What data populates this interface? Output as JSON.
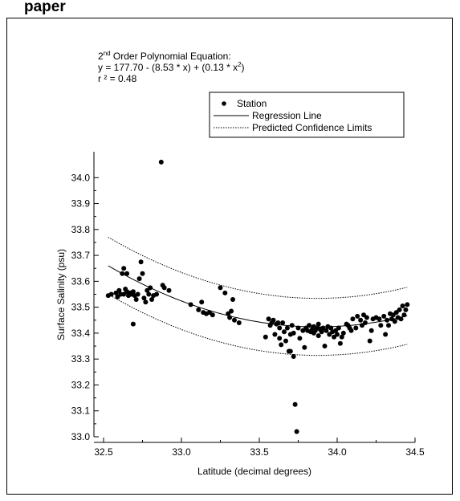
{
  "page": {
    "title": "paper"
  },
  "equation": {
    "line1_prefix": "2",
    "line1_sup": "nd",
    "line1_suffix": " Order Polynomial Equation:",
    "line2_main": "y = 177.70 - (8.53 * x) + (0.13 * x",
    "line2_sup": "2",
    "line2_end": ")",
    "line3": "r ² = 0.48"
  },
  "chart_data": {
    "type": "scatter",
    "xlabel": "Latitude (decimal degrees)",
    "ylabel": "Surface Salinity (psu)",
    "xlim": [
      32.5,
      34.5
    ],
    "ylim": [
      33.0,
      34.1
    ],
    "xticks": [
      "32.5",
      "33.0",
      "33.5",
      "34.0",
      "34.5"
    ],
    "yticks": [
      "33.0",
      "33.1",
      "33.2",
      "33.3",
      "33.4",
      "33.5",
      "33.6",
      "33.7",
      "33.8",
      "33.9",
      "34.0"
    ],
    "legend": {
      "position": "top-right",
      "entries": [
        "Station",
        "Regression Line",
        "Predicted Confidence Limits"
      ]
    },
    "colors": {
      "points": "#000000",
      "lines": "#000000"
    },
    "regression": {
      "intercept": 177.7,
      "b1": -8.53,
      "b2": 0.13,
      "r2": 0.48
    },
    "stations": [
      [
        32.53,
        33.545
      ],
      [
        32.55,
        33.55
      ],
      [
        32.58,
        33.555
      ],
      [
        32.59,
        33.54
      ],
      [
        32.6,
        33.565
      ],
      [
        32.61,
        33.55
      ],
      [
        32.62,
        33.63
      ],
      [
        32.63,
        33.65
      ],
      [
        32.63,
        33.55
      ],
      [
        32.64,
        33.57
      ],
      [
        32.65,
        33.56
      ],
      [
        32.65,
        33.63
      ],
      [
        32.66,
        33.545
      ],
      [
        32.67,
        33.555
      ],
      [
        32.68,
        33.55
      ],
      [
        32.69,
        33.435
      ],
      [
        32.69,
        33.56
      ],
      [
        32.7,
        33.545
      ],
      [
        32.71,
        33.53
      ],
      [
        32.72,
        33.55
      ],
      [
        32.73,
        33.61
      ],
      [
        32.74,
        33.675
      ],
      [
        32.75,
        33.63
      ],
      [
        32.76,
        33.535
      ],
      [
        32.77,
        33.52
      ],
      [
        32.78,
        33.565
      ],
      [
        32.79,
        33.55
      ],
      [
        32.8,
        33.575
      ],
      [
        32.81,
        33.53
      ],
      [
        32.82,
        33.545
      ],
      [
        32.84,
        33.55
      ],
      [
        32.87,
        34.06
      ],
      [
        32.88,
        33.585
      ],
      [
        32.89,
        33.575
      ],
      [
        32.92,
        33.565
      ],
      [
        33.06,
        33.51
      ],
      [
        33.11,
        33.49
      ],
      [
        33.13,
        33.52
      ],
      [
        33.14,
        33.48
      ],
      [
        33.16,
        33.475
      ],
      [
        33.18,
        33.48
      ],
      [
        33.2,
        33.47
      ],
      [
        33.25,
        33.575
      ],
      [
        33.28,
        33.555
      ],
      [
        33.3,
        33.475
      ],
      [
        33.31,
        33.46
      ],
      [
        33.32,
        33.485
      ],
      [
        33.33,
        33.53
      ],
      [
        33.34,
        33.45
      ],
      [
        33.37,
        33.44
      ],
      [
        33.54,
        33.385
      ],
      [
        33.56,
        33.455
      ],
      [
        33.57,
        33.43
      ],
      [
        33.58,
        33.44
      ],
      [
        33.59,
        33.45
      ],
      [
        33.6,
        33.395
      ],
      [
        33.61,
        33.435
      ],
      [
        33.62,
        33.44
      ],
      [
        33.63,
        33.38
      ],
      [
        33.63,
        33.42
      ],
      [
        33.64,
        33.355
      ],
      [
        33.65,
        33.44
      ],
      [
        33.66,
        33.405
      ],
      [
        33.67,
        33.37
      ],
      [
        33.68,
        33.42
      ],
      [
        33.69,
        33.33
      ],
      [
        33.7,
        33.395
      ],
      [
        33.7,
        33.33
      ],
      [
        33.71,
        33.43
      ],
      [
        33.72,
        33.4
      ],
      [
        33.72,
        33.31
      ],
      [
        33.73,
        33.125
      ],
      [
        33.74,
        33.02
      ],
      [
        33.75,
        33.42
      ],
      [
        33.76,
        33.38
      ],
      [
        33.78,
        33.41
      ],
      [
        33.79,
        33.345
      ],
      [
        33.8,
        33.42
      ],
      [
        33.81,
        33.41
      ],
      [
        33.82,
        33.43
      ],
      [
        33.83,
        33.405
      ],
      [
        33.84,
        33.415
      ],
      [
        33.85,
        33.425
      ],
      [
        33.85,
        33.4
      ],
      [
        33.86,
        33.41
      ],
      [
        33.87,
        33.42
      ],
      [
        33.88,
        33.435
      ],
      [
        33.88,
        33.39
      ],
      [
        33.89,
        33.415
      ],
      [
        33.9,
        33.405
      ],
      [
        33.91,
        33.42
      ],
      [
        33.92,
        33.35
      ],
      [
        33.93,
        33.41
      ],
      [
        33.94,
        33.425
      ],
      [
        33.95,
        33.395
      ],
      [
        33.96,
        33.42
      ],
      [
        33.97,
        33.405
      ],
      [
        33.98,
        33.385
      ],
      [
        33.99,
        33.41
      ],
      [
        34.0,
        33.395
      ],
      [
        34.01,
        33.42
      ],
      [
        34.02,
        33.36
      ],
      [
        34.03,
        33.385
      ],
      [
        34.04,
        33.4
      ],
      [
        34.06,
        33.435
      ],
      [
        34.07,
        33.43
      ],
      [
        34.08,
        33.42
      ],
      [
        34.09,
        33.41
      ],
      [
        34.1,
        33.455
      ],
      [
        34.12,
        33.42
      ],
      [
        34.13,
        33.465
      ],
      [
        34.15,
        33.45
      ],
      [
        34.16,
        33.43
      ],
      [
        34.17,
        33.47
      ],
      [
        34.18,
        33.44
      ],
      [
        34.19,
        33.46
      ],
      [
        34.21,
        33.37
      ],
      [
        34.22,
        33.41
      ],
      [
        34.23,
        33.455
      ],
      [
        34.25,
        33.46
      ],
      [
        34.27,
        33.455
      ],
      [
        34.28,
        33.43
      ],
      [
        34.3,
        33.465
      ],
      [
        34.31,
        33.395
      ],
      [
        34.32,
        33.45
      ],
      [
        34.33,
        33.43
      ],
      [
        34.34,
        33.475
      ],
      [
        34.35,
        33.455
      ],
      [
        34.36,
        33.47
      ],
      [
        34.37,
        33.445
      ],
      [
        34.38,
        33.48
      ],
      [
        34.39,
        33.46
      ],
      [
        34.4,
        33.49
      ],
      [
        34.41,
        33.455
      ],
      [
        34.42,
        33.505
      ],
      [
        34.43,
        33.47
      ],
      [
        34.44,
        33.49
      ],
      [
        34.45,
        33.51
      ]
    ]
  }
}
